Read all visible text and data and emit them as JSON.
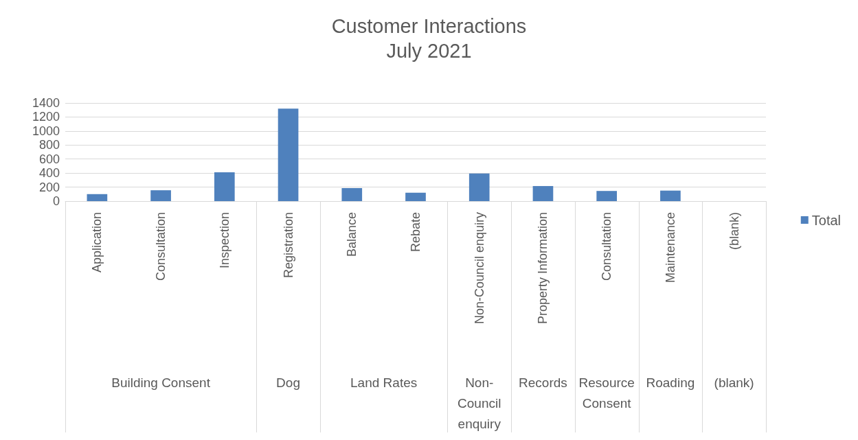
{
  "chart_data": {
    "type": "bar",
    "title": "Customer Interactions",
    "subtitle": "July 2021",
    "categories": [
      "Application",
      "Consultation",
      "Inspection",
      "Registration",
      "Balance",
      "Rebate",
      "Non-Council enquiry",
      "Property Information",
      "Consultation",
      "Maintenance",
      "(blank)"
    ],
    "series": [
      {
        "name": "Total",
        "color": "#4f81bd",
        "values": [
          100,
          155,
          410,
          1320,
          185,
          120,
          395,
          215,
          145,
          150,
          null
        ]
      }
    ],
    "annotations": [
      "Building Consent",
      "Dog",
      "Land Rates",
      "Non-Council enquiry",
      "Records",
      "Resource Consent",
      "Roading",
      "(blank)"
    ],
    "ylim": [
      0,
      1400
    ],
    "yticks": [
      0,
      200,
      400,
      600,
      800,
      1000,
      1200,
      1400
    ],
    "grid": "y",
    "legend": "right"
  }
}
